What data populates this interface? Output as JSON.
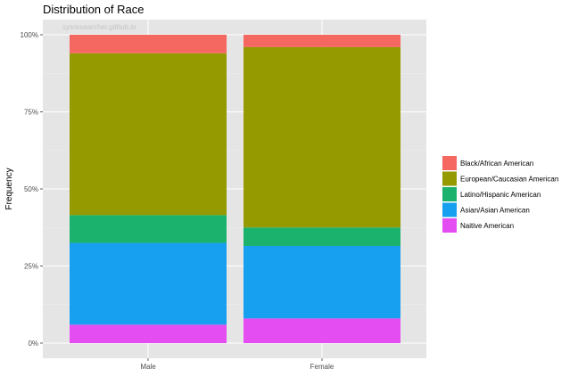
{
  "watermark": "sysresearcher.github.io",
  "chart_data": {
    "type": "bar",
    "stacked": true,
    "title": "Distribution of Race",
    "xlabel": "",
    "ylabel": "Frequency",
    "ylim": [
      0,
      1
    ],
    "y_ticks": [
      "0%",
      "25%",
      "50%",
      "75%",
      "100%"
    ],
    "categories": [
      "Male",
      "Female"
    ],
    "grid": true,
    "legend_position": "right",
    "series": [
      {
        "name": "Naitive American",
        "color": "#E44DF1",
        "values": [
          0.06,
          0.08
        ]
      },
      {
        "name": "Asian/Asian American",
        "color": "#17A0F0",
        "values": [
          0.265,
          0.235
        ]
      },
      {
        "name": "Latino/Hispanic American",
        "color": "#1BB26D",
        "values": [
          0.09,
          0.06
        ]
      },
      {
        "name": "European/Caucasian American",
        "color": "#949A00",
        "values": [
          0.525,
          0.585
        ]
      },
      {
        "name": "Black/African American",
        "color": "#F56761",
        "values": [
          0.06,
          0.04
        ]
      }
    ],
    "legend_order": [
      "Black/African American",
      "European/Caucasian American",
      "Latino/Hispanic American",
      "Asian/Asian American",
      "Naitive American"
    ]
  }
}
